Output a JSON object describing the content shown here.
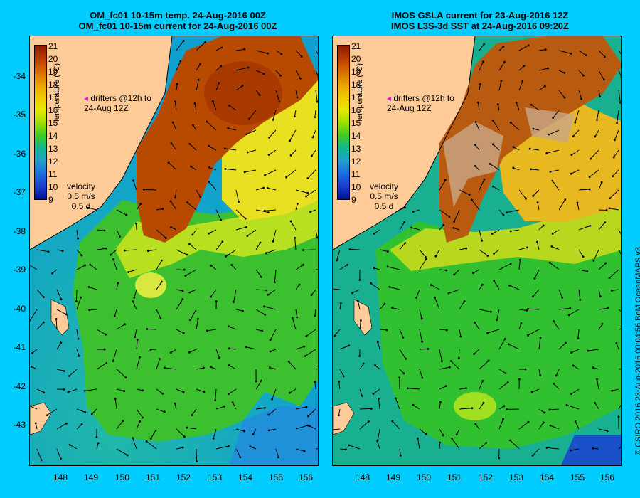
{
  "left_panel": {
    "title_line1": "OM_fc01 10-15m temp. 24-Aug-2016 00Z",
    "title_line2": "OM_fc01 10-15m current for 24-Aug-2016 00Z"
  },
  "right_panel": {
    "title_line1": "IMOS GSLA current for 23-Aug-2016 12Z",
    "title_line2": "IMOS L3S-3d SST at 24-Aug-2016 09:20Z"
  },
  "latitude_ticks": [
    "-34",
    "-35",
    "-36",
    "-37",
    "-38",
    "-39",
    "-40",
    "-41",
    "-42",
    "-43"
  ],
  "longitude_ticks": [
    "148",
    "149",
    "150",
    "151",
    "152",
    "153",
    "154",
    "155",
    "156"
  ],
  "colorbar": {
    "title": "temperature (°C)",
    "ticks": [
      "21",
      "20",
      "19",
      "18",
      "17",
      "16",
      "15",
      "14",
      "13",
      "12",
      "11",
      "10",
      "9"
    ],
    "colors": [
      "#8b1a00",
      "#b83a00",
      "#d86a00",
      "#e8a000",
      "#f0c800",
      "#e8e800",
      "#a0e000",
      "#40cc20",
      "#10b890",
      "#20a0c8",
      "#1a6ee0",
      "#1a3ccc",
      "#001090"
    ]
  },
  "drifters_label": "drifters @12h to",
  "drifters_date": "24-Aug 12Z",
  "velocity_label": "velocity",
  "velocity_scale": "0.5 m/s",
  "velocity_days": "0.5 d",
  "credit": "© CSIRO 2016   23-Aug-2016 00:04:56 BoM OceanMAPS v3",
  "colors": {
    "background": "#00ccff",
    "land": "#ffcc99",
    "warm_core": "#b84a00",
    "cloud": "#c8a888"
  }
}
